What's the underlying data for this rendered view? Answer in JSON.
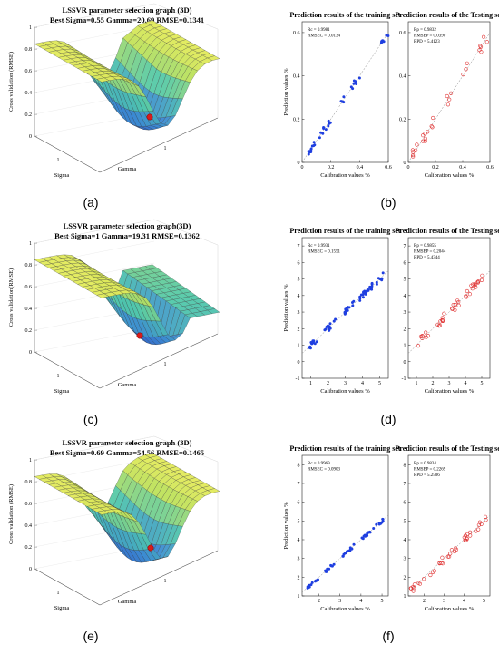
{
  "panel_labels": [
    "(a)",
    "(b)",
    "(c)",
    "(d)",
    "(e)",
    "(f)"
  ],
  "colors": {
    "train": "#1f3fe0",
    "test": "#e03030",
    "min_point": "#d81b1b",
    "surface_high": "#f3ef55",
    "surface_low": "#2d52d0"
  },
  "chart_data": [
    {
      "type": "surface",
      "panel": "(a)",
      "title": "LSSVR parameter selection graph (3D)",
      "subtitle": "Best Sigma=0.55 Gamma=20.69 RMSE=0.1341",
      "zlabel": "Cross validation (RMSE)",
      "xlabel": "Gamma",
      "ylabel": "Sigma",
      "zticks": [
        "0",
        "0.2",
        "0.4",
        "0.6",
        "0.8",
        "1"
      ],
      "sigma_ticks": [
        "1"
      ],
      "gamma_ticks": [
        "1"
      ],
      "best": {
        "sigma": 0.55,
        "gamma": 20.69,
        "rmse": 0.1341
      }
    },
    {
      "type": "scatter",
      "panel": "(b)-train",
      "title": "Prediction results of the training set",
      "xlabel": "Calibration values %",
      "ylabel": "Prediction values %",
      "stats": [
        "Rc = 0.9981",
        "RMSEC = 0.0134"
      ],
      "xticks": [
        "0",
        "0.2",
        "0.4",
        "0.6"
      ],
      "yticks": [
        "0",
        "0.2",
        "0.4",
        "0.6"
      ],
      "xlim": [
        0,
        0.6
      ],
      "ylim": [
        0,
        0.65
      ],
      "marker": "dot",
      "seed": 11,
      "n": 40,
      "noise": 0.015,
      "clusters": [
        [
          0.04,
          0.1,
          10
        ],
        [
          0.12,
          0.2,
          10
        ],
        [
          0.26,
          0.3,
          5
        ],
        [
          0.34,
          0.42,
          7
        ],
        [
          0.55,
          0.6,
          8
        ]
      ]
    },
    {
      "type": "scatter",
      "panel": "(b)-test",
      "title": "Prediction results of the Testing set",
      "xlabel": "Calibration values %",
      "ylabel": "",
      "stats": [
        "Rp = 0.9832",
        "RMSEP = 0.0390",
        "RPD = 5.4123"
      ],
      "xticks": [
        "0",
        "0.2",
        "0.4",
        "0.6"
      ],
      "yticks": [
        "0",
        "0.2",
        "0.4",
        "0.6"
      ],
      "xlim": [
        0,
        0.6
      ],
      "ylim": [
        0,
        0.65
      ],
      "marker": "circle",
      "seed": 23,
      "n": 28,
      "noise": 0.03,
      "clusters": [
        [
          0.02,
          0.08,
          6
        ],
        [
          0.1,
          0.2,
          9
        ],
        [
          0.28,
          0.32,
          4
        ],
        [
          0.4,
          0.45,
          3
        ],
        [
          0.52,
          0.58,
          6
        ]
      ]
    },
    {
      "type": "surface",
      "panel": "(c)",
      "title": "LSSVR parameter selection graph(3D)",
      "subtitle": "Best Sigma=1 Gamma=19.31 RMSE=0.1362",
      "zlabel": "Cross validation(RMSE)",
      "xlabel": "Gamma",
      "ylabel": "Sigma",
      "zticks": [
        "0",
        "0.2",
        "0.4",
        "0.6",
        "0.8",
        "1"
      ],
      "sigma_ticks": [
        "1"
      ],
      "gamma_ticks": [
        "1"
      ],
      "best": {
        "sigma": 1,
        "gamma": 19.31,
        "rmse": 0.1362
      }
    },
    {
      "type": "scatter",
      "panel": "(d)-train",
      "title": "Prediction results of the training set",
      "xlabel": "Calibration values %",
      "ylabel": "Prediction values %",
      "stats": [
        "Rc = 0.9931",
        "RMSEC = 0.1551"
      ],
      "xticks": [
        "1",
        "2",
        "3",
        "4",
        "5"
      ],
      "yticks": [
        "-1",
        "0",
        "1",
        "2",
        "3",
        "4",
        "5",
        "6",
        "7"
      ],
      "xlim": [
        0.5,
        5.5
      ],
      "ylim": [
        -1,
        7.5
      ],
      "marker": "dot",
      "seed": 37,
      "n": 70,
      "noise": 0.18,
      "clusters": [
        [
          0.9,
          1.5,
          12
        ],
        [
          1.8,
          2.6,
          14
        ],
        [
          2.9,
          3.6,
          14
        ],
        [
          3.8,
          4.6,
          22
        ],
        [
          4.8,
          5.3,
          8
        ]
      ]
    },
    {
      "type": "scatter",
      "panel": "(d)-test",
      "title": "Prediction results of the Testing set",
      "xlabel": "Calibration values %",
      "ylabel": "",
      "stats": [
        "Rp = 0.9855",
        "RMSEP = 0.2044",
        "RPD = 5.4344"
      ],
      "xticks": [
        "1",
        "2",
        "3",
        "4",
        "5"
      ],
      "yticks": [
        "-1",
        "0",
        "1",
        "2",
        "3",
        "4",
        "5",
        "6",
        "7"
      ],
      "xlim": [
        0.5,
        5.5
      ],
      "ylim": [
        -1,
        7.5
      ],
      "marker": "circle",
      "seed": 41,
      "n": 40,
      "noise": 0.25,
      "clusters": [
        [
          1.1,
          1.8,
          8
        ],
        [
          2.0,
          2.7,
          9
        ],
        [
          3.0,
          3.7,
          8
        ],
        [
          4.0,
          4.8,
          13
        ],
        [
          5.0,
          5.1,
          2
        ]
      ]
    },
    {
      "type": "surface",
      "panel": "(e)",
      "title": "LSSVR parameter selection graph (3D)",
      "subtitle": "Best Sigma=0.69 Gamma=54.56 RMSE=0.1465",
      "zlabel": "Cross validation (RMSE)",
      "xlabel": "Gamma",
      "ylabel": "Sigma",
      "zticks": [
        "0",
        "0.2",
        "0.4",
        "0.6",
        "0.8",
        "1"
      ],
      "sigma_ticks": [
        "1"
      ],
      "gamma_ticks": [
        "1"
      ],
      "best": {
        "sigma": 0.69,
        "gamma": 54.56,
        "rmse": 0.1465
      }
    },
    {
      "type": "scatter",
      "panel": "(f)-train",
      "title": "Prediction results of the training set",
      "xlabel": "Calibration values %",
      "ylabel": "Prediction values %",
      "stats": [
        "Rc = 0.9969",
        "RMSEC = 0.0903"
      ],
      "xticks": [
        "2",
        "3",
        "4",
        "5"
      ],
      "yticks": [
        "1",
        "2",
        "3",
        "4",
        "5",
        "6",
        "7",
        "8"
      ],
      "xlim": [
        1.2,
        5.3
      ],
      "ylim": [
        1,
        8.5
      ],
      "marker": "dot",
      "seed": 53,
      "n": 60,
      "noise": 0.09,
      "clusters": [
        [
          1.4,
          2.0,
          14
        ],
        [
          2.3,
          3.0,
          10
        ],
        [
          3.1,
          3.8,
          12
        ],
        [
          4.0,
          4.6,
          16
        ],
        [
          4.7,
          5.1,
          8
        ]
      ]
    },
    {
      "type": "scatter",
      "panel": "(f)-test",
      "title": "Prediction results of the Testing set",
      "xlabel": "Calibration values %",
      "ylabel": "",
      "stats": [
        "Rp = 0.9834",
        "RMSEP = 0.2269",
        "RPD = 5.2506"
      ],
      "xticks": [
        "2",
        "3",
        "4",
        "5"
      ],
      "yticks": [
        "1",
        "2",
        "3",
        "4",
        "5",
        "6",
        "7",
        "8"
      ],
      "xlim": [
        1.2,
        5.3
      ],
      "ylim": [
        1,
        8.5
      ],
      "marker": "circle",
      "seed": 67,
      "n": 40,
      "noise": 0.2,
      "clusters": [
        [
          1.3,
          2.0,
          9
        ],
        [
          2.2,
          3.0,
          8
        ],
        [
          3.2,
          3.8,
          7
        ],
        [
          4.0,
          4.6,
          10
        ],
        [
          4.7,
          5.1,
          6
        ]
      ]
    }
  ]
}
